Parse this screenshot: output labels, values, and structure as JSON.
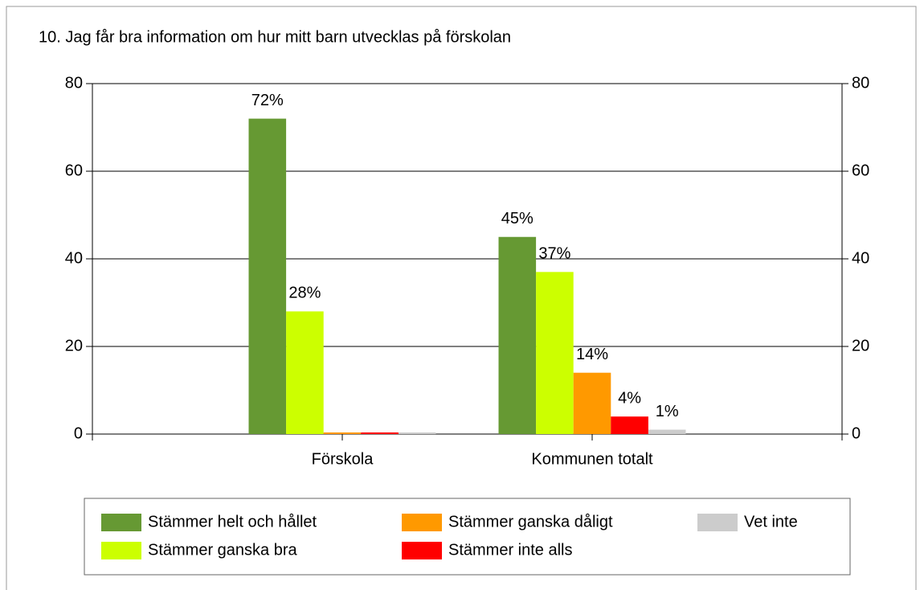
{
  "chart_data": {
    "type": "bar",
    "title": "10. Jag får bra information om hur mitt barn utvecklas på förskolan",
    "categories": [
      "Förskola",
      "Kommunen totalt"
    ],
    "series": [
      {
        "name": "Stämmer helt och hållet",
        "color": "#669933",
        "values": [
          72,
          45
        ],
        "value_labels": [
          "72%",
          "45%"
        ]
      },
      {
        "name": "Stämmer ganska bra",
        "color": "#ccff00",
        "values": [
          28,
          37
        ],
        "value_labels": [
          "28%",
          "37%"
        ]
      },
      {
        "name": "Stämmer ganska dåligt",
        "color": "#ff9900",
        "values": [
          0,
          14
        ],
        "value_labels": [
          null,
          "14%"
        ]
      },
      {
        "name": "Stämmer inte alls",
        "color": "#ff0000",
        "values": [
          0,
          4
        ],
        "value_labels": [
          null,
          "4%"
        ]
      },
      {
        "name": "Vet inte",
        "color": "#cccccc",
        "values": [
          0,
          1
        ],
        "value_labels": [
          null,
          "1%"
        ]
      }
    ],
    "ylim": [
      0,
      80
    ],
    "yticks": [
      0,
      20,
      40,
      60,
      80
    ],
    "y2lim": [
      0,
      80
    ],
    "y2ticks": [
      0,
      20,
      40,
      60,
      80
    ],
    "grid": true,
    "legend": "bottom"
  }
}
